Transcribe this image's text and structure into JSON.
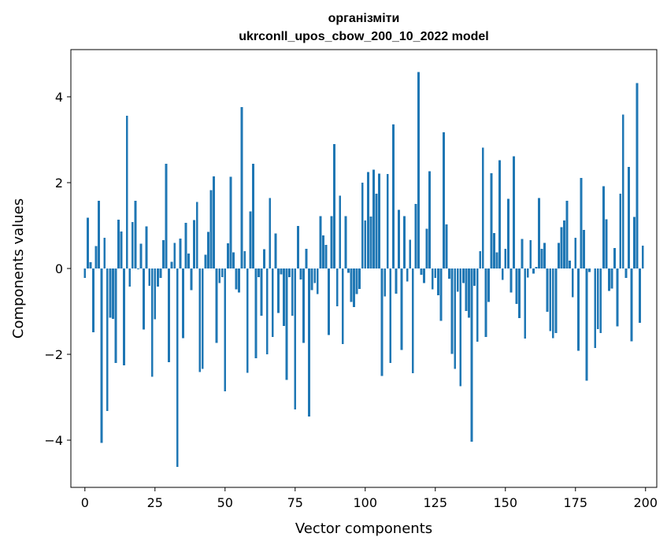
{
  "chart_data": {
    "type": "bar",
    "title": "організміти",
    "subtitle": "ukrconll_upos_cbow_200_10_2022 model",
    "xlabel": "Vector components",
    "ylabel": "Components values",
    "xlim": [
      -5,
      204
    ],
    "ylim": [
      -5.1,
      5.1
    ],
    "xticks": [
      0,
      25,
      50,
      75,
      100,
      125,
      150,
      175,
      200
    ],
    "yticks": [
      -4,
      -2,
      0,
      2,
      4
    ],
    "ytick_labels": [
      "−4",
      "−2",
      "0",
      "2",
      "4"
    ],
    "bar_color": "#1f77b4",
    "categories": [
      0,
      1,
      2,
      3,
      4,
      5,
      6,
      7,
      8,
      9,
      10,
      11,
      12,
      13,
      14,
      15,
      16,
      17,
      18,
      19,
      20,
      21,
      22,
      23,
      24,
      25,
      26,
      27,
      28,
      29,
      30,
      31,
      32,
      33,
      34,
      35,
      36,
      37,
      38,
      39,
      40,
      41,
      42,
      43,
      44,
      45,
      46,
      47,
      48,
      49,
      50,
      51,
      52,
      53,
      54,
      55,
      56,
      57,
      58,
      59,
      60,
      61,
      62,
      63,
      64,
      65,
      66,
      67,
      68,
      69,
      70,
      71,
      72,
      73,
      74,
      75,
      76,
      77,
      78,
      79,
      80,
      81,
      82,
      83,
      84,
      85,
      86,
      87,
      88,
      89,
      90,
      91,
      92,
      93,
      94,
      95,
      96,
      97,
      98,
      99,
      100,
      101,
      102,
      103,
      104,
      105,
      106,
      107,
      108,
      109,
      110,
      111,
      112,
      113,
      114,
      115,
      116,
      117,
      118,
      119,
      120,
      121,
      122,
      123,
      124,
      125,
      126,
      127,
      128,
      129,
      130,
      131,
      132,
      133,
      134,
      135,
      136,
      137,
      138,
      139,
      140,
      141,
      142,
      143,
      144,
      145,
      146,
      147,
      148,
      149,
      150,
      151,
      152,
      153,
      154,
      155,
      156,
      157,
      158,
      159,
      160,
      161,
      162,
      163,
      164,
      165,
      166,
      167,
      168,
      169,
      170,
      171,
      172,
      173,
      174,
      175,
      176,
      177,
      178,
      179,
      180,
      181,
      182,
      183,
      184,
      185,
      186,
      187,
      188,
      189,
      190,
      191,
      192,
      193,
      194,
      195,
      196,
      197,
      198,
      199
    ],
    "values": [
      -0.22,
      1.18,
      0.15,
      -1.49,
      0.52,
      1.58,
      -4.06,
      0.72,
      -3.32,
      -1.15,
      -1.17,
      -2.2,
      1.14,
      0.86,
      -2.26,
      3.56,
      -0.42,
      1.08,
      1.58,
      -0.02,
      0.58,
      -1.42,
      0.98,
      -0.4,
      -2.52,
      -1.18,
      -0.42,
      -0.22,
      0.66,
      2.44,
      -2.18,
      0.16,
      0.6,
      -4.62,
      0.7,
      -1.62,
      1.06,
      0.35,
      -0.5,
      1.13,
      1.55,
      -2.41,
      -2.34,
      0.32,
      0.85,
      1.83,
      2.15,
      -1.73,
      -0.34,
      -0.2,
      -2.86,
      0.59,
      2.14,
      0.38,
      -0.49,
      -0.56,
      3.76,
      0.4,
      -2.43,
      1.33,
      2.44,
      -2.09,
      -0.2,
      -1.1,
      0.45,
      -2.0,
      1.64,
      -1.6,
      0.82,
      -1.04,
      -0.14,
      -1.34,
      -2.6,
      -0.2,
      -1.1,
      -3.28,
      0.99,
      -0.26,
      -1.73,
      0.46,
      -3.45,
      -0.5,
      -0.34,
      -0.6,
      1.22,
      0.77,
      0.55,
      -1.55,
      1.22,
      2.9,
      -0.88,
      1.7,
      -1.76,
      1.22,
      -0.1,
      -0.78,
      -0.9,
      -0.6,
      -0.48,
      2.0,
      1.12,
      2.25,
      1.21,
      2.3,
      1.74,
      2.21,
      -2.5,
      -0.65,
      2.2,
      -2.2,
      3.36,
      -0.59,
      1.37,
      -1.9,
      1.22,
      -0.3,
      0.67,
      -2.44,
      1.5,
      4.58,
      -0.15,
      -0.34,
      0.93,
      2.27,
      -0.49,
      -0.22,
      -0.62,
      -1.22,
      3.17,
      1.03,
      -0.24,
      -1.99,
      -2.34,
      -0.54,
      -2.74,
      -0.34,
      -0.99,
      -1.15,
      -4.04,
      -0.4,
      -1.71,
      0.4,
      2.82,
      -1.6,
      -0.78,
      2.22,
      0.83,
      0.38,
      2.52,
      -0.27,
      0.46,
      1.62,
      -0.56,
      2.61,
      -0.83,
      -1.16,
      0.69,
      -1.63,
      -0.21,
      0.66,
      -0.12,
      0.04,
      1.64,
      0.46,
      0.6,
      -1.01,
      -1.46,
      -1.62,
      -1.5,
      0.6,
      0.96,
      1.12,
      1.58,
      0.18,
      -0.67,
      0.72,
      -1.92,
      2.11,
      0.9,
      -2.61,
      -0.08,
      0.0,
      -1.85,
      -1.41,
      -1.5,
      1.92,
      1.15,
      -0.52,
      -0.47,
      0.48,
      -1.35,
      1.74,
      3.59,
      -0.22,
      2.37,
      -1.7,
      1.2,
      4.32,
      -1.27,
      0.53
    ]
  }
}
